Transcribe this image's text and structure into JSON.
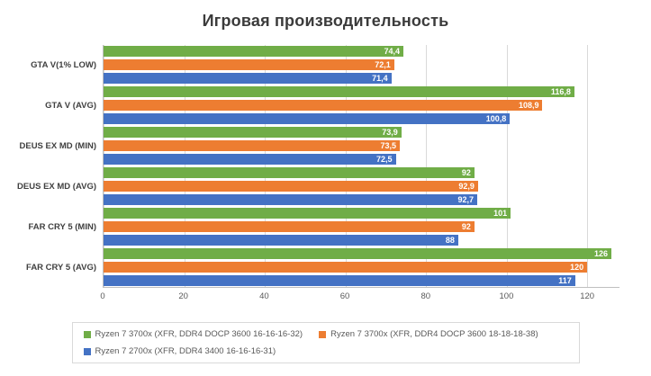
{
  "chart_data": {
    "type": "bar",
    "orientation": "horizontal",
    "title": "Игровая производительность",
    "xlabel": "",
    "ylabel": "",
    "grid": true,
    "legend_position": "bottom",
    "categories": [
      "GTA V(1% LOW)",
      "GTA V (AVG)",
      "DEUS EX MD (MIN)",
      "DEUS EX MD (AVG)",
      "FAR CRY 5 (MIN)",
      "FAR CRY 5 (AVG)"
    ],
    "series": [
      {
        "name": "Ryzen 7 3700x (XFR, DDR4 DOCP 3600 16-16-16-32)",
        "color": "#70ad47",
        "values": [
          74.4,
          116.8,
          73.9,
          92,
          101,
          126
        ],
        "labels": [
          "74,4",
          "116,8",
          "73,9",
          "92",
          "101",
          "126"
        ]
      },
      {
        "name": "Ryzen 7 3700x (XFR, DDR4 DOCP 3600 18-18-18-38)",
        "color": "#ed7d31",
        "values": [
          72.1,
          108.9,
          73.5,
          92.9,
          92,
          120
        ],
        "labels": [
          "72,1",
          "108,9",
          "73,5",
          "92,9",
          "92",
          "120"
        ]
      },
      {
        "name": "Ryzen 7 2700x (XFR, DDR4 3400 16-16-16-31)",
        "color": "#4472c4",
        "values": [
          71.4,
          100.8,
          72.5,
          92.7,
          88,
          117
        ],
        "labels": [
          "71,4",
          "100,8",
          "72,5",
          "92,7",
          "88",
          "117"
        ]
      }
    ],
    "x_axis": {
      "ticks": [
        0,
        20,
        40,
        60,
        80,
        100,
        120
      ],
      "max": 128
    }
  }
}
